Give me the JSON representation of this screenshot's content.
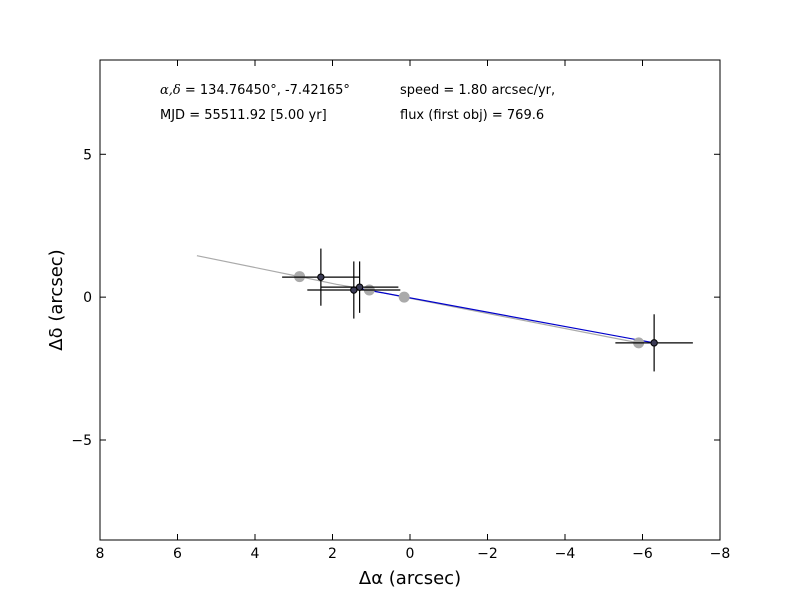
{
  "chart_data": {
    "type": "scatter",
    "xlabel": "Δα (arcsec)",
    "ylabel": "Δδ (arcsec)",
    "xlim": [
      8,
      -8
    ],
    "ylim": [
      -8.5,
      8.3
    ],
    "x_ticks": [
      8,
      6,
      4,
      2,
      0,
      -2,
      -4,
      -6,
      -8
    ],
    "y_ticks": [
      -5,
      0,
      5
    ],
    "x_tick_labels": [
      "8",
      "6",
      "4",
      "2",
      "0",
      "−2",
      "−4",
      "−6",
      "−8"
    ],
    "y_tick_labels": [
      "−5",
      "0",
      "5"
    ],
    "grid": false,
    "annotations": {
      "coords_prefix": "α,δ",
      "coords_text": " = 134.76450°, -7.42165°",
      "mjd_text": "MJD = 55511.92 [5.00 yr]",
      "speed_text": "speed = 1.80 arcsec/yr,",
      "flux_text": "flux (first obj) = 769.6"
    },
    "series": [
      {
        "kind": "model-track",
        "color": "#aaaaaa",
        "x": [
          5.5,
          2.85,
          1.9,
          1.05,
          0.15,
          -5.9
        ],
        "y": [
          1.45,
          0.72,
          0.45,
          0.25,
          0.0,
          -1.6
        ]
      },
      {
        "kind": "model-points",
        "color": "#aaaaaa",
        "x": [
          2.85,
          1.05,
          0.15,
          -5.9
        ],
        "y": [
          0.72,
          0.25,
          0.0,
          -1.6
        ]
      },
      {
        "kind": "fit-line",
        "color": "#0000cc",
        "x": [
          1.3,
          -6.3
        ],
        "y": [
          0.3,
          -1.6
        ]
      },
      {
        "kind": "observations",
        "color": "#000000",
        "x": [
          2.3,
          1.45,
          1.3,
          -6.3
        ],
        "y": [
          0.7,
          0.25,
          0.35,
          -1.6
        ],
        "xerr": [
          1.0,
          1.2,
          1.0,
          1.0
        ],
        "yerr": [
          1.0,
          1.0,
          0.9,
          1.0
        ]
      }
    ]
  }
}
